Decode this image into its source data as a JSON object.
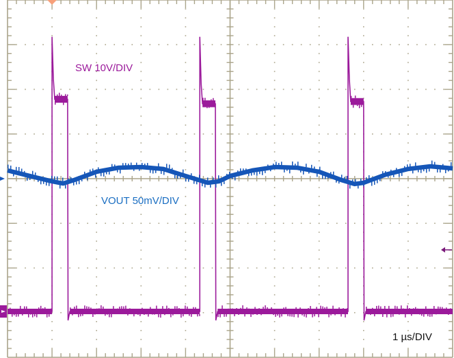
{
  "chart_data": {
    "type": "line",
    "title": "",
    "xlabel": "",
    "ylabel": "",
    "grid": true,
    "x_divisions": 10,
    "y_divisions": 8,
    "xlim_us": [
      0,
      10
    ],
    "timebase_label": "1 µs/DIV",
    "trigger_time_us": 1.0,
    "series": [
      {
        "name": "SW 10V/DIV",
        "color": "#9b1a9b",
        "units": "V",
        "scale_per_div": 10,
        "points": [
          [
            0,
            0
          ],
          [
            1.0,
            0
          ],
          [
            1.0,
            61.5
          ],
          [
            1.03,
            52
          ],
          [
            1.06,
            47.5
          ],
          [
            1.35,
            47.5
          ],
          [
            1.36,
            -2
          ],
          [
            1.4,
            0
          ],
          [
            4.32,
            0
          ],
          [
            4.32,
            61.5
          ],
          [
            4.35,
            51
          ],
          [
            4.38,
            46.5
          ],
          [
            4.67,
            46.5
          ],
          [
            4.68,
            -2
          ],
          [
            4.72,
            0
          ],
          [
            7.65,
            0
          ],
          [
            7.65,
            61.5
          ],
          [
            7.68,
            52
          ],
          [
            7.71,
            47
          ],
          [
            8.0,
            47
          ],
          [
            8.01,
            -2
          ],
          [
            8.05,
            0
          ],
          [
            10,
            0
          ]
        ]
      },
      {
        "name": "VOUT 50mV/DIV",
        "color": "#1556b8",
        "units": "mV (AC)",
        "scale_per_div": 50,
        "points": [
          [
            0,
            9.2
          ],
          [
            0.5,
            3
          ],
          [
            1.0,
            -3
          ],
          [
            1.25,
            -5.4
          ],
          [
            1.5,
            -1.5
          ],
          [
            2.0,
            7.7
          ],
          [
            2.5,
            12.3
          ],
          [
            3.0,
            13
          ],
          [
            3.5,
            10.8
          ],
          [
            4.0,
            3
          ],
          [
            4.5,
            -4.6
          ],
          [
            4.75,
            -3
          ],
          [
            5.0,
            3
          ],
          [
            5.5,
            9.2
          ],
          [
            6.0,
            13
          ],
          [
            6.5,
            12.3
          ],
          [
            7.0,
            7.7
          ],
          [
            7.5,
            -1.5
          ],
          [
            7.8,
            -6
          ],
          [
            8.0,
            -4.6
          ],
          [
            8.5,
            4.6
          ],
          [
            9.0,
            10.8
          ],
          [
            9.5,
            13.8
          ],
          [
            10,
            11.5
          ]
        ]
      }
    ],
    "annotations": {
      "sw_label": "SW 10V/DIV",
      "vout_label": "VOUT 50mV/DIV",
      "timebase": "1 µs/DIV"
    },
    "colors": {
      "grid": "#aaa48a",
      "trigger_marker": "#f7a07a",
      "sw": "#9b1a9b",
      "vout": "#1556b8"
    }
  }
}
